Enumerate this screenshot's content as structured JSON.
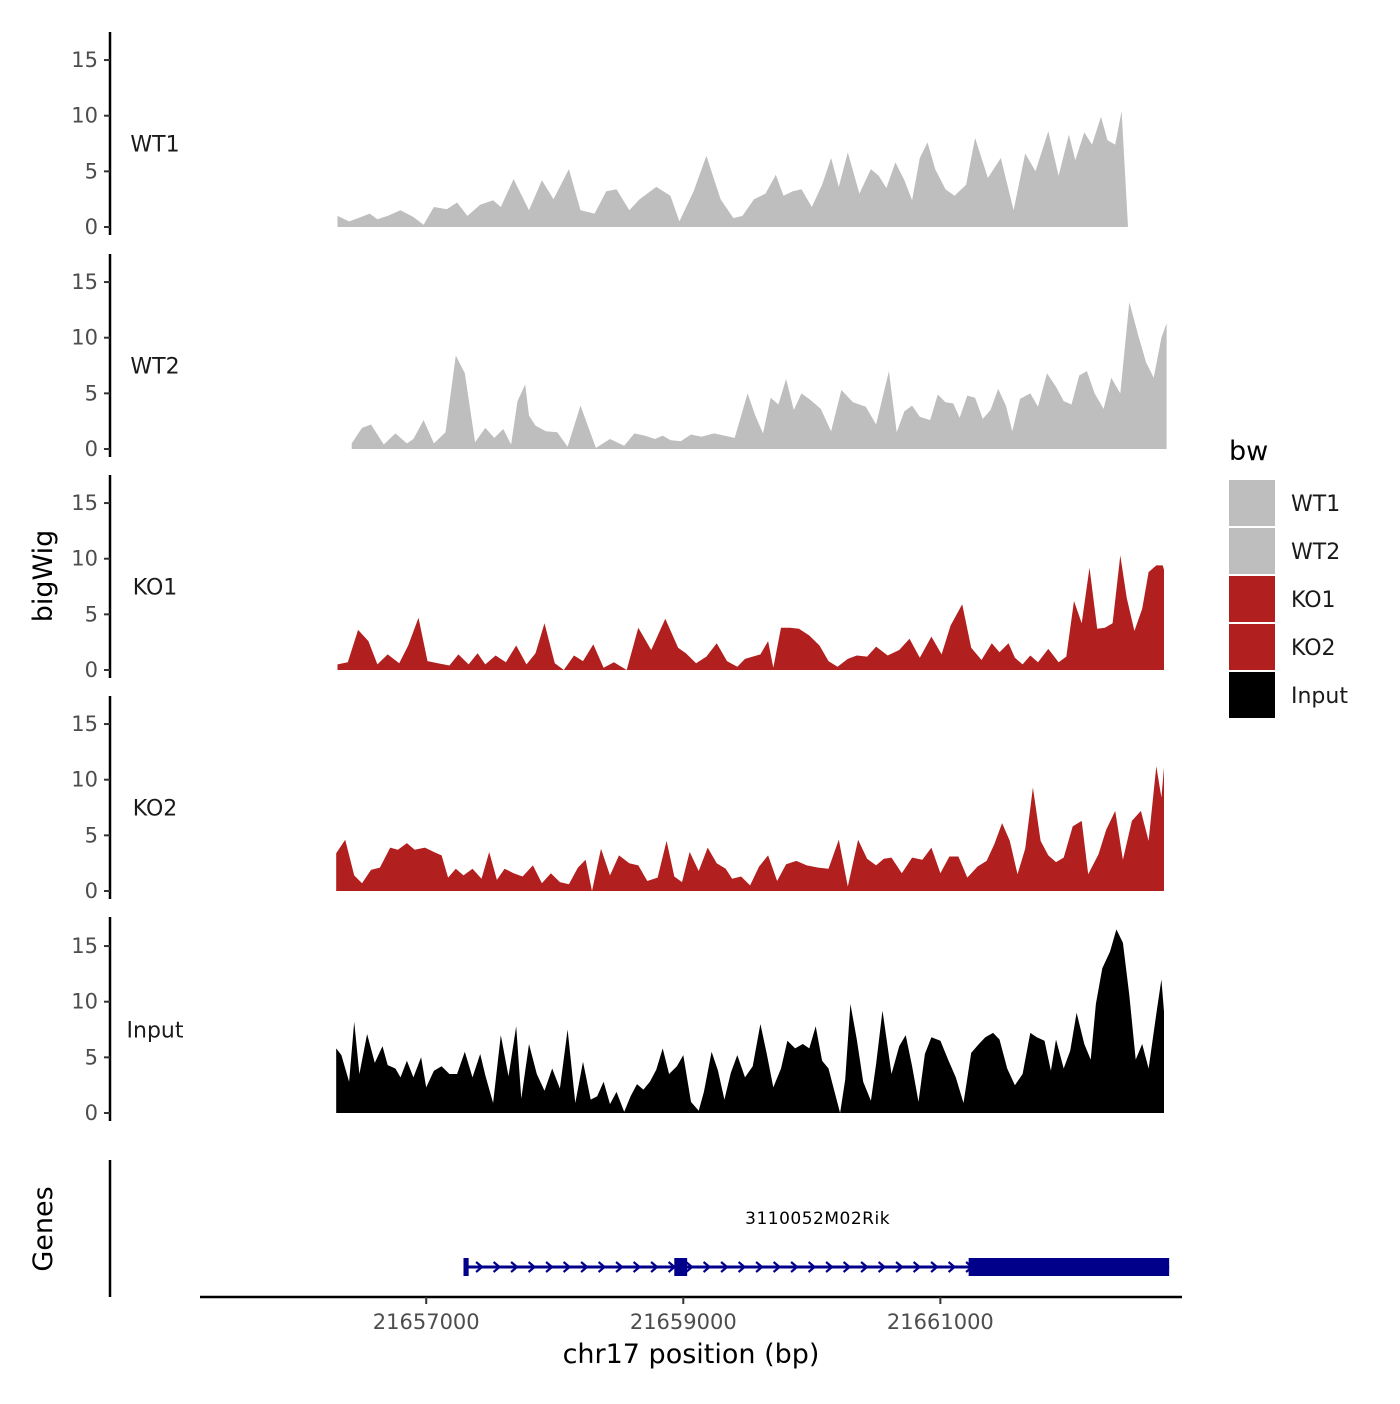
{
  "chart_data": {
    "type": "area",
    "title": "",
    "xlabel": "chr17 position (bp)",
    "ylabel": "bigWig",
    "genes_label": "Genes",
    "xlim": [
      21655240,
      21662880
    ],
    "x_ticks": [
      21657000,
      21659000,
      21661000
    ],
    "x_tick_labels": [
      "21657000",
      "21659000",
      "21661000"
    ],
    "ylim": [
      0,
      17.5
    ],
    "y_ticks": [
      0,
      5,
      10,
      15
    ],
    "y_tick_labels": [
      "0",
      "5",
      "10",
      "15"
    ],
    "legend": {
      "title": "bw",
      "position": "right",
      "entries": [
        {
          "label": "WT1",
          "color": "#bebebe"
        },
        {
          "label": "WT2",
          "color": "#bebebe"
        },
        {
          "label": "KO1",
          "color": "#b21f1f"
        },
        {
          "label": "KO2",
          "color": "#b21f1f"
        },
        {
          "label": "Input",
          "color": "#000000"
        }
      ]
    },
    "series": [
      {
        "name": "WT1",
        "color": "#bebebe",
        "x": [
          21656310,
          21656400,
          21656470,
          21656560,
          21656620,
          21656700,
          21656800,
          21656900,
          21656980,
          21657060,
          21657160,
          21657240,
          21657320,
          21657420,
          21657520,
          21657580,
          21657680,
          21657800,
          21657900,
          21657990,
          21658110,
          21658200,
          21658310,
          21658400,
          21658480,
          21658580,
          21658660,
          21658790,
          21658900,
          21658970,
          21659080,
          21659180,
          21659290,
          21659390,
          21659460,
          21659550,
          21659640,
          21659720,
          21659780,
          21659850,
          21659920,
          21660000,
          21660080,
          21660150,
          21660210,
          21660280,
          21660370,
          21660460,
          21660520,
          21660580,
          21660650,
          21660720,
          21660780,
          21660840,
          21660900,
          21660960,
          21661040,
          21661110,
          21661200,
          21661270,
          21661370,
          21661470,
          21661570,
          21661660,
          21661740,
          21661840,
          21661920,
          21662000,
          21662050,
          21662120,
          21662180,
          21662250,
          21662300,
          21662360,
          21662410,
          21662460,
          21662530,
          21662580,
          21662620,
          21662670,
          21662720,
          21662740
        ],
        "y": [
          1.0,
          0.5,
          0.8,
          1.2,
          0.7,
          1.0,
          1.5,
          0.9,
          0.2,
          1.8,
          1.6,
          2.2,
          1.0,
          2.0,
          2.4,
          1.8,
          4.3,
          1.5,
          4.2,
          2.5,
          5.2,
          1.5,
          1.2,
          3.2,
          3.4,
          1.5,
          2.5,
          3.6,
          2.8,
          0.5,
          3.2,
          6.4,
          2.5,
          0.8,
          1.0,
          2.5,
          3.0,
          4.7,
          2.8,
          3.2,
          3.4,
          1.8,
          3.8,
          6.2,
          3.6,
          6.7,
          3.0,
          5.2,
          4.6,
          3.5,
          5.8,
          4.2,
          2.4,
          6.2,
          7.6,
          5.2,
          3.4,
          2.8,
          3.8,
          8.0,
          4.4,
          6.2,
          1.5,
          6.6,
          5.0,
          8.6,
          4.6,
          8.3,
          6.0,
          8.5,
          7.4,
          9.9,
          7.8,
          7.4,
          10.4,
          0.0,
          0,
          0,
          0,
          0,
          0,
          0
        ]
      },
      {
        "name": "WT2",
        "color": "#bebebe",
        "x": [
          21656420,
          21656500,
          21656570,
          21656670,
          21656760,
          21656850,
          21656900,
          21656980,
          21657060,
          21657150,
          21657230,
          21657300,
          21657380,
          21657460,
          21657530,
          21657600,
          21657660,
          21657710,
          21657770,
          21657800,
          21657850,
          21657930,
          21658020,
          21658100,
          21658200,
          21658320,
          21658430,
          21658540,
          21658620,
          21658700,
          21658780,
          21658840,
          21658900,
          21658980,
          21659060,
          21659140,
          21659240,
          21659320,
          21659400,
          21659500,
          21659560,
          21659620,
          21659680,
          21659740,
          21659800,
          21659860,
          21659920,
          21659990,
          21660070,
          21660150,
          21660230,
          21660320,
          21660420,
          21660500,
          21660600,
          21660660,
          21660720,
          21660780,
          21660840,
          21660920,
          21660980,
          21661040,
          21661100,
          21661150,
          21661210,
          21661270,
          21661330,
          21661390,
          21661450,
          21661510,
          21661560,
          21661620,
          21661700,
          21661760,
          21661830,
          21661900,
          21661960,
          21662020,
          21662080,
          21662140,
          21662200,
          21662270,
          21662330,
          21662400,
          21662470,
          21662540,
          21662600,
          21662660,
          21662720,
          21662760
        ],
        "y": [
          0.5,
          1.9,
          2.2,
          0.4,
          1.4,
          0.5,
          0.9,
          2.6,
          0.5,
          1.5,
          8.4,
          6.8,
          0.6,
          1.9,
          1.0,
          1.8,
          0.4,
          4.3,
          5.8,
          3.0,
          2.1,
          1.6,
          1.5,
          0.2,
          3.9,
          0.1,
          0.9,
          0.3,
          1.4,
          1.2,
          0.9,
          1.2,
          0.8,
          0.7,
          1.3,
          1.1,
          1.4,
          1.2,
          1.0,
          5.0,
          3.0,
          1.4,
          4.6,
          4.0,
          6.3,
          3.5,
          5.0,
          4.4,
          3.6,
          1.6,
          5.3,
          4.2,
          3.8,
          2.2,
          7.0,
          1.5,
          3.4,
          3.9,
          2.9,
          2.6,
          4.9,
          4.2,
          4.1,
          2.8,
          4.8,
          4.6,
          2.7,
          3.5,
          5.4,
          3.9,
          1.6,
          4.5,
          5.0,
          3.8,
          6.8,
          5.6,
          4.3,
          4.0,
          6.6,
          7.0,
          5.0,
          3.6,
          6.4,
          5.0,
          13.2,
          10.2,
          7.8,
          6.4,
          10.0,
          11.3
        ]
      },
      {
        "name": "KO1",
        "color": "#b21f1f",
        "x": [
          21656310,
          21656390,
          21656470,
          21656550,
          21656620,
          21656700,
          21656790,
          21656860,
          21656940,
          21657010,
          21657090,
          21657180,
          21657250,
          21657330,
          21657400,
          21657460,
          21657540,
          21657620,
          21657700,
          21657780,
          21657850,
          21657920,
          21658000,
          21658070,
          21658150,
          21658220,
          21658300,
          21658380,
          21658460,
          21658560,
          21658650,
          21658750,
          21658860,
          21658960,
          21659020,
          21659100,
          21659180,
          21659260,
          21659340,
          21659420,
          21659480,
          21659540,
          21659600,
          21659660,
          21659700,
          21659760,
          21659830,
          21659900,
          21659980,
          21660060,
          21660130,
          21660200,
          21660280,
          21660350,
          21660430,
          21660500,
          21660590,
          21660680,
          21660760,
          21660840,
          21660930,
          21661010,
          21661080,
          21661170,
          21661240,
          21661320,
          21661400,
          21661460,
          21661530,
          21661580,
          21661640,
          21661700,
          21661760,
          21661840,
          21661920,
          21661980,
          21662040,
          21662100,
          21662160,
          21662220,
          21662280,
          21662340,
          21662400,
          21662450,
          21662510,
          21662570,
          21662620,
          21662680,
          21662730,
          21662740
        ],
        "y": [
          0.5,
          0.7,
          3.6,
          2.6,
          0.5,
          1.4,
          0.6,
          2.2,
          4.7,
          0.8,
          0.6,
          0.4,
          1.4,
          0.5,
          1.5,
          0.5,
          1.3,
          0.7,
          2.2,
          0.5,
          1.5,
          4.2,
          0.6,
          0.0,
          1.3,
          0.8,
          2.3,
          0.2,
          0.7,
          0.0,
          3.8,
          1.8,
          4.6,
          2.0,
          1.5,
          0.6,
          1.2,
          2.4,
          0.8,
          0.3,
          1.0,
          1.2,
          1.4,
          2.6,
          0.2,
          3.8,
          3.8,
          3.7,
          3.1,
          2.2,
          0.8,
          0.3,
          1.0,
          1.3,
          1.2,
          2.1,
          1.3,
          1.8,
          2.8,
          1.1,
          3.0,
          1.4,
          4.0,
          5.9,
          2.0,
          0.9,
          2.4,
          1.6,
          2.4,
          1.1,
          0.5,
          1.3,
          0.7,
          1.9,
          0.7,
          1.2,
          6.2,
          4.2,
          9.2,
          3.7,
          3.8,
          4.2,
          10.3,
          6.5,
          3.5,
          5.5,
          8.8,
          9.4,
          9.4,
          9.0
        ]
      },
      {
        "name": "KO2",
        "color": "#b21f1f",
        "x": [
          21656300,
          21656370,
          21656440,
          21656500,
          21656570,
          21656640,
          21656720,
          21656780,
          21656850,
          21656910,
          21656990,
          21657060,
          21657120,
          21657170,
          21657230,
          21657290,
          21657360,
          21657430,
          21657490,
          21657550,
          21657610,
          21657680,
          21657750,
          21657830,
          21657900,
          21657970,
          21658040,
          21658110,
          21658180,
          21658240,
          21658290,
          21658360,
          21658430,
          21658500,
          21658580,
          21658650,
          21658720,
          21658800,
          21658870,
          21658930,
          21658990,
          21659050,
          21659120,
          21659190,
          21659260,
          21659330,
          21659380,
          21659450,
          21659520,
          21659590,
          21659660,
          21659730,
          21659800,
          21659880,
          21659960,
          21660050,
          21660130,
          21660210,
          21660280,
          21660360,
          21660430,
          21660500,
          21660560,
          21660620,
          21660700,
          21660780,
          21660860,
          21660930,
          21661000,
          21661070,
          21661140,
          21661210,
          21661290,
          21661360,
          21661420,
          21661480,
          21661540,
          21661600,
          21661660,
          21661720,
          21661780,
          21661840,
          21661900,
          21661960,
          21662030,
          21662100,
          21662150,
          21662230,
          21662290,
          21662360,
          21662420,
          21662490,
          21662560,
          21662620,
          21662680,
          21662720,
          21662740
        ],
        "y": [
          3.4,
          4.6,
          1.4,
          0.7,
          1.9,
          2.1,
          3.9,
          3.7,
          4.3,
          3.7,
          3.9,
          3.5,
          3.2,
          1.2,
          2.0,
          1.4,
          2.0,
          1.1,
          3.5,
          1.0,
          2.0,
          1.6,
          1.3,
          2.3,
          0.7,
          1.6,
          0.8,
          0.6,
          2.1,
          2.8,
          0.0,
          3.8,
          1.4,
          3.2,
          2.5,
          2.3,
          0.9,
          1.2,
          4.5,
          1.3,
          0.8,
          3.5,
          1.8,
          3.9,
          2.5,
          2.0,
          1.1,
          1.3,
          0.5,
          2.2,
          3.2,
          0.9,
          2.4,
          2.7,
          2.3,
          2.1,
          2.0,
          4.6,
          0.4,
          4.6,
          2.9,
          2.3,
          2.9,
          3.0,
          1.6,
          3.0,
          2.8,
          3.9,
          1.6,
          3.1,
          3.1,
          1.2,
          2.2,
          2.7,
          4.2,
          6.1,
          4.5,
          1.5,
          3.8,
          9.3,
          4.5,
          3.2,
          2.6,
          3.0,
          5.8,
          6.3,
          1.5,
          3.3,
          5.5,
          7.2,
          2.8,
          6.3,
          7.2,
          4.5,
          11.2,
          8.4,
          11.1
        ]
      },
      {
        "name": "Input",
        "color": "#000000",
        "x": [
          21656300,
          21656340,
          21656400,
          21656440,
          21656480,
          21656540,
          21656600,
          21656660,
          21656700,
          21656760,
          21656800,
          21656850,
          21656900,
          21656960,
          21657000,
          21657060,
          21657120,
          21657180,
          21657240,
          21657300,
          21657360,
          21657420,
          21657460,
          21657520,
          21657580,
          21657640,
          21657700,
          21657740,
          21657800,
          21657860,
          21657920,
          21657980,
          21658040,
          21658100,
          21658160,
          21658220,
          21658280,
          21658330,
          21658380,
          21658430,
          21658480,
          21658540,
          21658590,
          21658640,
          21658690,
          21658740,
          21658790,
          21658840,
          21658890,
          21658950,
          21659000,
          21659060,
          21659120,
          21659160,
          21659220,
          21659270,
          21659320,
          21659370,
          21659420,
          21659480,
          21659540,
          21659600,
          21659650,
          21659700,
          21659760,
          21659810,
          21659870,
          21659930,
          21659980,
          21660030,
          21660080,
          21660130,
          21660170,
          21660220,
          21660260,
          21660300,
          21660350,
          21660400,
          21660460,
          21660500,
          21660550,
          21660620,
          21660680,
          21660730,
          21660780,
          21660830,
          21660880,
          21660930,
          21661000,
          21661060,
          21661120,
          21661180,
          21661240,
          21661300,
          21661350,
          21661410,
          21661460,
          21661520,
          21661580,
          21661640,
          21661700,
          21661750,
          21661810,
          21661860,
          21661900,
          21661960,
          21662010,
          21662060,
          21662120,
          21662170,
          21662210,
          21662260,
          21662320,
          21662370,
          21662420,
          21662470,
          21662520,
          21662570,
          21662620,
          21662680,
          21662720,
          21662740
        ],
        "y": [
          5.8,
          5.2,
          2.8,
          8.2,
          3.5,
          7.1,
          4.5,
          6.0,
          4.3,
          4.0,
          3.2,
          4.7,
          3.2,
          5.0,
          2.3,
          3.8,
          4.2,
          3.5,
          3.5,
          5.5,
          3.2,
          5.3,
          3.4,
          0.9,
          7.0,
          3.3,
          7.8,
          1.3,
          6.2,
          3.5,
          2.0,
          4.0,
          2.2,
          7.5,
          0.9,
          4.6,
          1.2,
          1.5,
          2.8,
          0.8,
          1.9,
          0.1,
          1.5,
          2.6,
          2.1,
          2.8,
          3.9,
          5.8,
          3.5,
          4.2,
          5.2,
          1.0,
          0.2,
          1.9,
          5.5,
          3.8,
          1.2,
          3.6,
          5.2,
          3.2,
          4.2,
          8.0,
          5.3,
          2.3,
          4.0,
          6.5,
          5.8,
          6.2,
          5.8,
          7.8,
          4.7,
          4.0,
          2.2,
          0.0,
          3.0,
          9.8,
          6.6,
          2.8,
          1.1,
          4.4,
          9.2,
          3.5,
          6.0,
          7.0,
          4.2,
          1.0,
          5.3,
          6.8,
          6.5,
          4.8,
          3.2,
          0.9,
          5.4,
          6.2,
          6.8,
          7.2,
          6.6,
          4.0,
          2.5,
          3.5,
          7.2,
          6.8,
          6.5,
          3.8,
          6.6,
          4.0,
          5.6,
          9.0,
          6.2,
          4.8,
          9.8,
          13.0,
          14.5,
          16.5,
          15.3,
          10.6,
          4.8,
          6.2,
          4.0,
          8.9,
          12.0,
          9.1
        ]
      }
    ],
    "genes": [
      {
        "name": "3110052M02Rik",
        "color": "#00008b",
        "strand": "+",
        "start": 21657310,
        "end": 21662780,
        "exons": [
          {
            "start": 21657290,
            "end": 21657330
          },
          {
            "start": 21658930,
            "end": 21659030
          },
          {
            "start": 21661220,
            "end": 21662780
          }
        ]
      }
    ]
  }
}
